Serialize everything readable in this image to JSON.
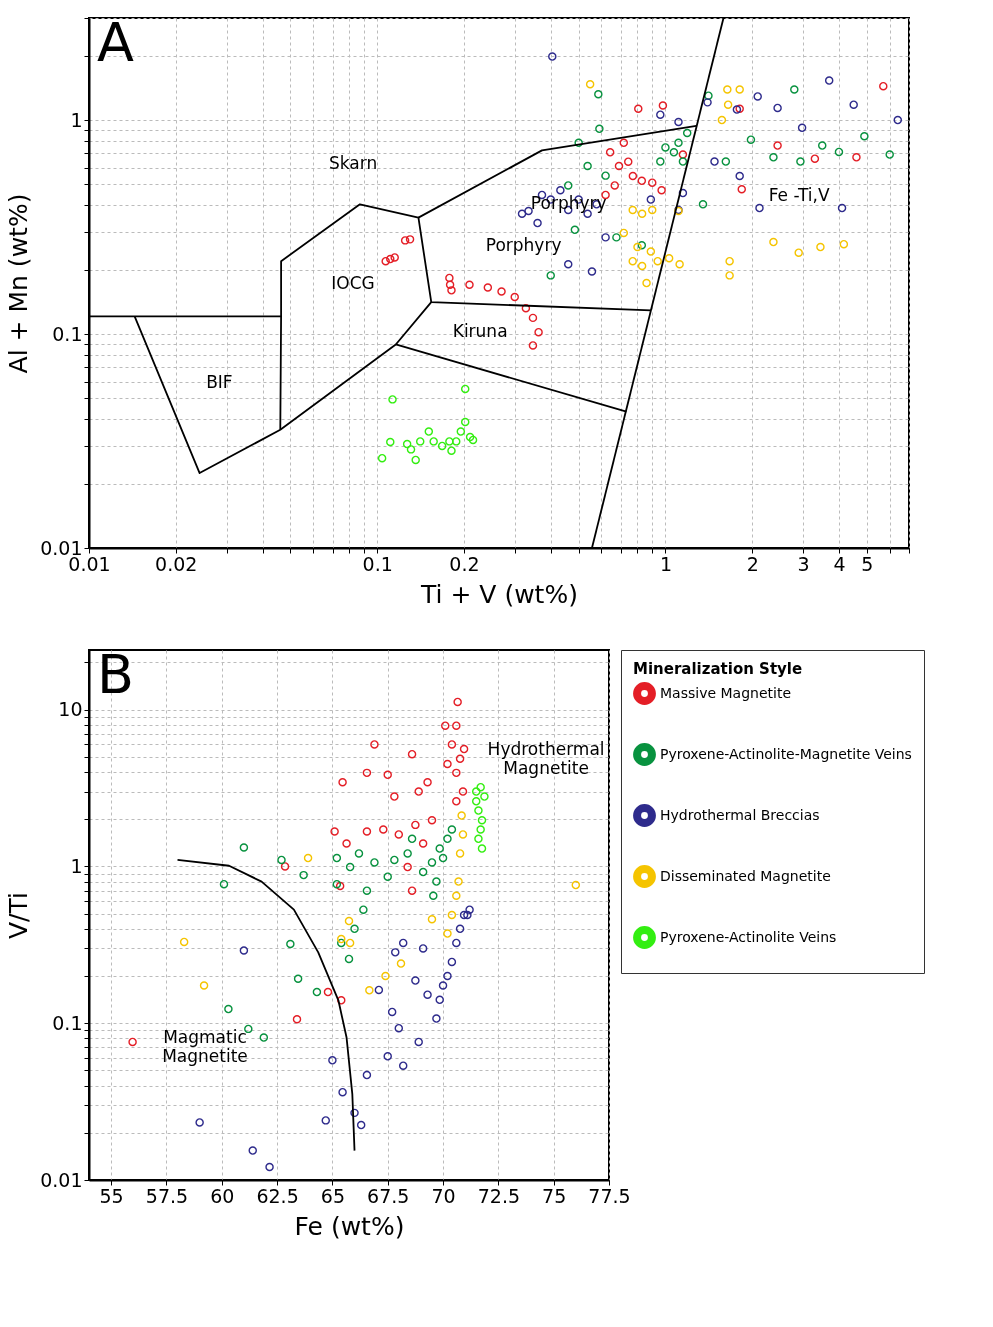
{
  "chart_data": [
    {
      "type": "scatter",
      "xlabel": "Ti + V (wt%)",
      "ylabel": "Al + Mn (wt%)",
      "log": "xy",
      "grid": true,
      "legend": false,
      "marker": "circle",
      "xlim": [
        0.01,
        7
      ],
      "ylim": [
        0.01,
        3
      ],
      "xticks": [
        0.01,
        0.02,
        {
          "value": 0.03,
          "label": null
        },
        {
          "value": 0.04,
          "label": null
        },
        {
          "value": 0.05,
          "label": null
        },
        {
          "value": 0.06,
          "label": null
        },
        {
          "value": 0.07,
          "label": null
        },
        {
          "value": 0.08,
          "label": null
        },
        {
          "value": 0.09,
          "label": null
        },
        0.1,
        0.2,
        {
          "value": 0.3,
          "label": null
        },
        {
          "value": 0.4,
          "label": null
        },
        {
          "value": 0.5,
          "label": null
        },
        {
          "value": 0.6,
          "label": null
        },
        {
          "value": 0.7,
          "label": null
        },
        {
          "value": 0.8,
          "label": null
        },
        {
          "value": 0.9,
          "label": null
        },
        1,
        2,
        3,
        4,
        5,
        {
          "value": 6,
          "label": null
        },
        {
          "value": 7,
          "label": null
        }
      ],
      "yticks": [
        0.01,
        {
          "value": 0.02,
          "label": null
        },
        {
          "value": 0.03,
          "label": null
        },
        {
          "value": 0.04,
          "label": null
        },
        {
          "value": 0.05,
          "label": null
        },
        {
          "value": 0.06,
          "label": null
        },
        {
          "value": 0.07,
          "label": null
        },
        {
          "value": 0.08,
          "label": null
        },
        {
          "value": 0.09,
          "label": null
        },
        0.1,
        {
          "value": 0.2,
          "label": null
        },
        {
          "value": 0.3,
          "label": null
        },
        {
          "value": 0.4,
          "label": null
        },
        {
          "value": 0.5,
          "label": null
        },
        {
          "value": 0.6,
          "label": null
        },
        {
          "value": 0.7,
          "label": null
        },
        {
          "value": 0.8,
          "label": null
        },
        {
          "value": 0.9,
          "label": null
        },
        1,
        {
          "value": 2,
          "label": null
        },
        {
          "value": 3,
          "label": null
        }
      ],
      "annotations": [
        "A",
        "Skarn",
        "IOCG",
        "BIF",
        "Kiruna",
        "Porphyry",
        "Porphyry",
        "Fe -Ti,V"
      ],
      "series": [
        {
          "color": "#e41e26",
          "x": [
            0.111,
            0.107,
            0.115,
            0.13,
            0.125,
            0.179,
            0.178,
            0.181,
            0.209,
            0.242,
            0.27,
            0.3,
            0.328,
            0.347,
            0.363,
            0.347,
            0.69,
            0.643,
            0.717,
            0.667,
            0.62,
            0.771,
            0.743,
            0.828,
            0.805,
            0.98,
            0.97,
            1.15,
            1.84,
            1.81,
            5.7,
            4.6,
            3.3,
            2.45,
            0.9
          ],
          "values": [
            0.224,
            0.219,
            0.228,
            0.277,
            0.274,
            0.17,
            0.183,
            0.16,
            0.17,
            0.165,
            0.158,
            0.149,
            0.132,
            0.119,
            0.102,
            0.0885,
            0.61,
            0.707,
            0.783,
            0.495,
            0.447,
            0.548,
            0.639,
            0.52,
            1.13,
            1.17,
            0.47,
            0.69,
            0.475,
            1.13,
            1.44,
            0.67,
            0.66,
            0.76,
            0.51
          ]
        },
        {
          "color": "#08923f",
          "x": [
            1.07,
            1.0,
            1.11,
            0.96,
            1.15,
            1.19,
            0.585,
            0.59,
            0.5,
            0.537,
            0.46,
            0.4,
            0.485,
            0.676,
            0.828,
            1.35,
            1.41,
            2.8,
            1.98,
            2.37,
            2.94,
            3.5,
            4.0,
            4.9,
            6.0,
            1.62,
            0.62
          ],
          "values": [
            0.707,
            0.745,
            0.783,
            0.64,
            0.64,
            0.87,
            1.32,
            0.91,
            0.783,
            0.61,
            0.495,
            0.188,
            0.307,
            0.283,
            0.26,
            0.404,
            1.3,
            1.39,
            0.81,
            0.67,
            0.64,
            0.76,
            0.71,
            0.84,
            0.69,
            0.64,
            0.55
          ]
        },
        {
          "color": "#2e2b8c",
          "x": [
            0.4,
            0.335,
            0.373,
            0.432,
            0.46,
            0.5,
            0.36,
            0.537,
            0.577,
            0.318,
            0.405,
            0.46,
            0.556,
            0.96,
            1.11,
            1.4,
            1.77,
            2.09,
            2.45,
            2.98,
            3.7,
            4.5,
            6.4,
            4.1,
            2.12,
            1.81,
            1.48,
            1.15,
            1.11,
            0.89,
            0.62
          ],
          "values": [
            0.425,
            0.376,
            0.447,
            0.47,
            0.38,
            0.425,
            0.33,
            0.365,
            0.404,
            0.365,
            1.98,
            0.212,
            0.196,
            1.06,
            0.98,
            1.21,
            1.12,
            1.29,
            1.14,
            0.92,
            1.53,
            1.18,
            1.0,
            0.388,
            0.388,
            0.548,
            0.64,
            0.456,
            0.38,
            0.425,
            0.283
          ]
        },
        {
          "color": "#f5c400",
          "x": [
            0.548,
            1.64,
            1.81,
            1.65,
            1.57,
            0.83,
            0.9,
            1.11,
            0.717,
            0.8,
            0.77,
            0.83,
            0.86,
            0.89,
            0.94,
            1.03,
            1.12,
            1.67,
            1.67,
            2.37,
            2.9,
            3.45,
            4.16,
            0.77
          ],
          "values": [
            1.47,
            1.39,
            1.39,
            1.18,
            1.0,
            0.365,
            0.38,
            0.376,
            0.297,
            0.255,
            0.219,
            0.208,
            0.173,
            0.243,
            0.219,
            0.226,
            0.212,
            0.219,
            0.188,
            0.269,
            0.24,
            0.255,
            0.263,
            0.38
          ]
        },
        {
          "color": "#33ee11",
          "x": [
            0.113,
            0.104,
            0.111,
            0.127,
            0.131,
            0.136,
            0.141,
            0.151,
            0.157,
            0.168,
            0.181,
            0.178,
            0.195,
            0.202,
            0.21,
            0.215,
            0.202,
            0.188
          ],
          "values": [
            0.0495,
            0.0263,
            0.0313,
            0.0306,
            0.0289,
            0.0258,
            0.0315,
            0.035,
            0.0315,
            0.03,
            0.0285,
            0.0315,
            0.035,
            0.0388,
            0.033,
            0.032,
            0.0554,
            0.0315
          ]
        },
        {
          "type": "line",
          "marker": "none",
          "color": "#000000",
          "x": [
            0.01,
            0.0464
          ],
          "values": [
            0.121,
            0.121
          ]
        },
        {
          "type": "line",
          "marker": "none",
          "color": "#000000",
          "x": [
            0.0144,
            0.0242,
            0.0461,
            0.116,
            0.154
          ],
          "values": [
            0.121,
            0.0224,
            0.0357,
            0.0894,
            0.141
          ]
        },
        {
          "type": "line",
          "marker": "none",
          "color": "#000000",
          "x": [
            0.0461,
            0.0464,
            0.0464,
            0.0871,
            0.139,
            0.154,
            0.891
          ],
          "values": [
            0.0357,
            0.121,
            0.219,
            0.404,
            0.35,
            0.141,
            0.129
          ]
        },
        {
          "type": "line",
          "marker": "none",
          "color": "#000000",
          "x": [
            0.139,
            0.373,
            1.28
          ],
          "values": [
            0.35,
            0.722,
            0.94
          ]
        },
        {
          "type": "line",
          "marker": "none",
          "color": "#000000",
          "x": [
            0.116,
            0.732
          ],
          "values": [
            0.0894,
            0.0434
          ]
        },
        {
          "type": "line",
          "marker": "none",
          "color": "#000000",
          "x": [
            0.556,
            1.59
          ],
          "values": [
            0.01,
            3
          ]
        }
      ]
    },
    {
      "type": "scatter",
      "xlabel": "Fe (wt%)",
      "ylabel": "V/Ti",
      "log": true,
      "grid": true,
      "legend": "right",
      "legend_title": "Mineralization Style",
      "marker": "circle",
      "xlim": [
        54,
        77.5
      ],
      "ylim": [
        0.01,
        24
      ],
      "xticks": [
        55,
        57.5,
        60,
        62.5,
        65,
        67.5,
        70,
        72.5,
        75,
        77.5
      ],
      "yticks": [
        0.01,
        {
          "value": 0.02,
          "label": null
        },
        {
          "value": 0.03,
          "label": null
        },
        {
          "value": 0.04,
          "label": null
        },
        {
          "value": 0.05,
          "label": null
        },
        {
          "value": 0.06,
          "label": null
        },
        {
          "value": 0.07,
          "label": null
        },
        {
          "value": 0.08,
          "label": null
        },
        {
          "value": 0.09,
          "label": null
        },
        0.1,
        {
          "value": 0.2,
          "label": null
        },
        {
          "value": 0.3,
          "label": null
        },
        {
          "value": 0.4,
          "label": null
        },
        {
          "value": 0.5,
          "label": null
        },
        {
          "value": 0.6,
          "label": null
        },
        {
          "value": 0.7,
          "label": null
        },
        {
          "value": 0.8,
          "label": null
        },
        {
          "value": 0.9,
          "label": null
        },
        1,
        {
          "value": 2,
          "label": null
        },
        {
          "value": 3,
          "label": null
        },
        {
          "value": 4,
          "label": null
        },
        {
          "value": 5,
          "label": null
        },
        {
          "value": 6,
          "label": null
        },
        {
          "value": 7,
          "label": null
        },
        {
          "value": 8,
          "label": null
        },
        {
          "value": 9,
          "label": null
        },
        10,
        {
          "value": 20,
          "label": null
        }
      ],
      "annotations": [
        "B",
        "Hydrothermal\nMagnetite",
        "Magmatic\nMagnetite"
      ],
      "series": [
        {
          "name": "Massive Magnetite",
          "color": "#e41e26",
          "x": [
            55.97,
            63.4,
            62.86,
            66.9,
            65.46,
            66.56,
            67.5,
            68.6,
            67.8,
            68.9,
            69.5,
            69.3,
            67.3,
            68.0,
            68.75,
            66.56,
            65.1,
            65.64,
            69.1,
            68.4,
            68.6,
            64.8,
            65.4,
            65.35,
            70.66,
            70.6,
            70.4,
            70.77,
            70.6,
            70.9,
            70.6,
            70.2,
            70.95,
            70.1
          ],
          "values": [
            0.076,
            0.106,
            1.0,
            6.0,
            3.44,
            3.95,
            3.84,
            5.2,
            2.79,
            3.0,
            1.97,
            3.44,
            1.72,
            1.6,
            1.84,
            1.67,
            1.67,
            1.4,
            1.4,
            0.99,
            0.7,
            0.158,
            0.14,
            0.75,
            11.2,
            7.9,
            6.0,
            4.86,
            3.95,
            3.0,
            2.6,
            4.5,
            5.6,
            7.9
          ]
        },
        {
          "name": "Pyroxene-Actinolite-Magnetite Veins",
          "color": "#08923f",
          "x": [
            61.0,
            60.1,
            60.3,
            61.2,
            61.9,
            63.1,
            63.45,
            64.3,
            63.7,
            62.7,
            65.2,
            65.2,
            65.8,
            66.2,
            66.56,
            66.9,
            67.5,
            67.8,
            68.4,
            68.6,
            69.1,
            69.5,
            69.85,
            70.2,
            70.0,
            70.4,
            69.7,
            66.4,
            65.75,
            65.4,
            66.0,
            69.56
          ],
          "values": [
            1.32,
            0.77,
            0.123,
            0.092,
            0.081,
            0.32,
            0.192,
            0.158,
            0.88,
            1.1,
            1.13,
            0.77,
            0.99,
            1.21,
            0.7,
            1.06,
            0.86,
            1.1,
            1.21,
            1.5,
            0.92,
            1.06,
            1.3,
            1.5,
            1.13,
            1.72,
            0.8,
            0.53,
            0.257,
            0.325,
            0.4,
            0.65
          ]
        },
        {
          "name": "Hydrothermal Breccias",
          "color": "#2e2b8c",
          "x": [
            59.0,
            61.4,
            62.16,
            61.0,
            65.0,
            65.46,
            64.7,
            66.0,
            66.3,
            66.56,
            67.5,
            67.7,
            68.0,
            68.2,
            68.9,
            68.75,
            68.2,
            69.1,
            69.3,
            69.7,
            69.85,
            70.0,
            70.2,
            70.4,
            70.6,
            70.77,
            70.95,
            71.1,
            71.2,
            67.84,
            67.1
          ],
          "values": [
            0.0233,
            0.0154,
            0.0121,
            0.291,
            0.058,
            0.0363,
            0.024,
            0.0268,
            0.0224,
            0.0467,
            0.0615,
            0.118,
            0.093,
            0.0536,
            0.076,
            0.187,
            0.325,
            0.3,
            0.152,
            0.107,
            0.141,
            0.174,
            0.2,
            0.246,
            0.325,
            0.4,
            0.49,
            0.49,
            0.53,
            0.283,
            0.163
          ]
        },
        {
          "name": "Disseminated Magnetite",
          "color": "#f5c400",
          "x": [
            58.3,
            59.2,
            63.9,
            65.4,
            65.8,
            65.75,
            66.67,
            67.4,
            68.1,
            70.2,
            70.4,
            70.6,
            70.7,
            70.77,
            70.9,
            70.84,
            76.0,
            69.5
          ],
          "values": [
            0.33,
            0.174,
            1.13,
            0.344,
            0.325,
            0.448,
            0.162,
            0.2,
            0.24,
            0.373,
            0.49,
            0.65,
            0.8,
            1.21,
            1.6,
            2.11,
            0.76,
            0.46
          ]
        },
        {
          "name": "Pyroxene-Actinolite Veins",
          "color": "#33ee11",
          "x": [
            71.5,
            71.7,
            71.87,
            71.6,
            71.76,
            71.7,
            71.6,
            71.76,
            71.5
          ],
          "values": [
            3.0,
            3.2,
            2.79,
            2.27,
            1.97,
            1.72,
            1.5,
            1.3,
            2.6
          ]
        },
        {
          "type": "line",
          "marker": "none",
          "color": "#000000",
          "x": [
            58.0,
            60.33,
            61.8,
            63.26,
            64.36,
            65.27,
            65.64,
            65.9,
            66.0
          ],
          "values": [
            1.1,
            1.01,
            0.8,
            0.53,
            0.283,
            0.14,
            0.081,
            0.0353,
            0.0154
          ]
        }
      ]
    }
  ]
}
